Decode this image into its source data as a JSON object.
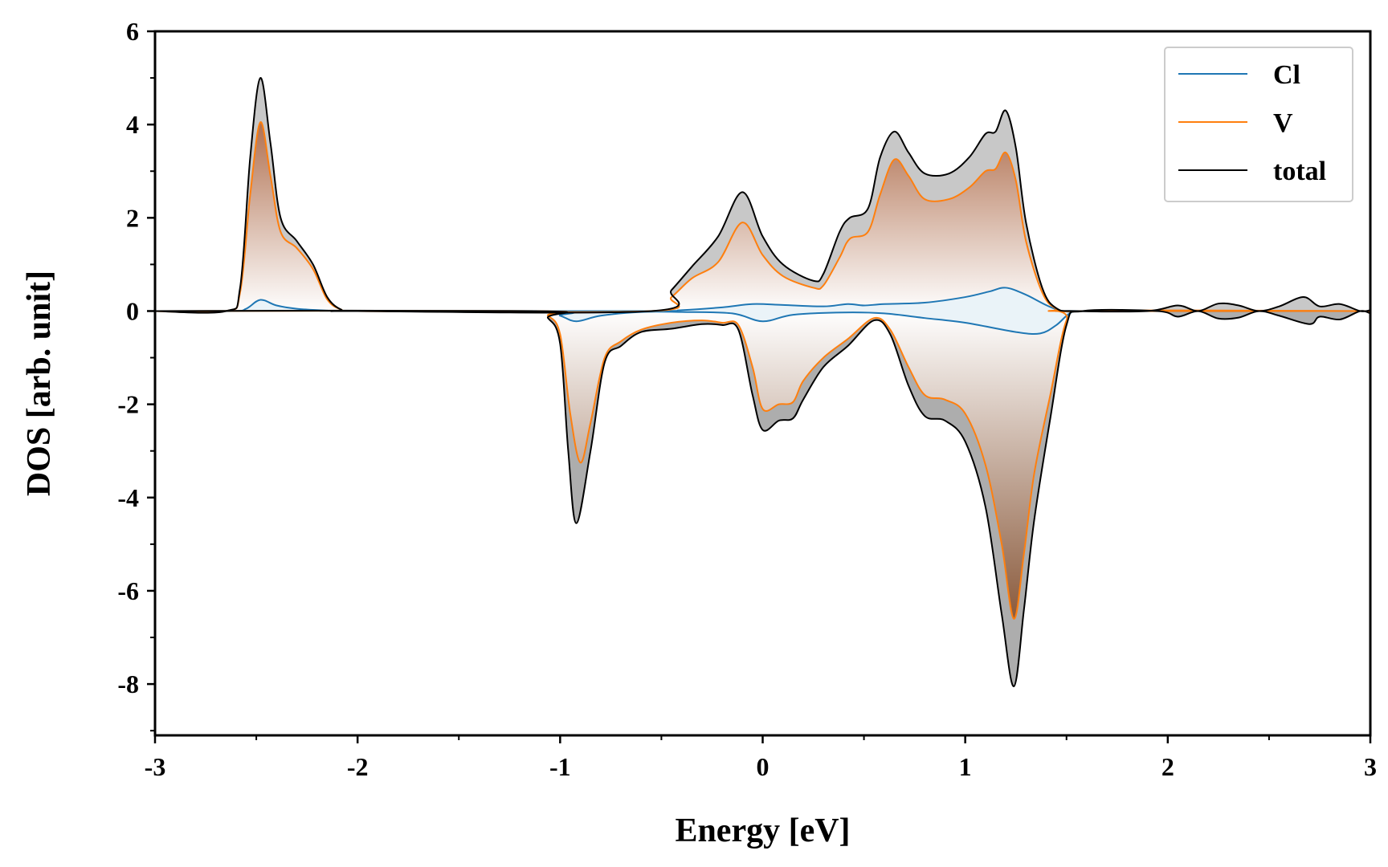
{
  "chart_data": {
    "type": "area",
    "title": "",
    "xlabel": "Energy [eV]",
    "ylabel": "DOS [arb. unit]",
    "xlim": [
      -3,
      3
    ],
    "ylim": [
      -9.1,
      6
    ],
    "xticks": [
      {
        "value": -3,
        "label": "-3"
      },
      {
        "value": -2,
        "label": "-2"
      },
      {
        "value": -1,
        "label": "-1"
      },
      {
        "value": 0,
        "label": "0"
      },
      {
        "value": 1,
        "label": "1"
      },
      {
        "value": 2,
        "label": "2"
      },
      {
        "value": 3,
        "label": "3"
      }
    ],
    "yticks": [
      {
        "value": 6,
        "label": "6"
      },
      {
        "value": 4,
        "label": "4"
      },
      {
        "value": 2,
        "label": "2"
      },
      {
        "value": 0,
        "label": "0"
      },
      {
        "value": -2,
        "label": "-2"
      },
      {
        "value": -4,
        "label": "-4"
      },
      {
        "value": -6,
        "label": "-6"
      },
      {
        "value": -8,
        "label": "-8"
      }
    ],
    "grid": false,
    "legend_position": "top-right",
    "series": [
      {
        "name": "Cl",
        "color": "#1f77b4",
        "up": [
          [
            -3,
            0
          ],
          [
            -2.62,
            0
          ],
          [
            -2.55,
            0.05
          ],
          [
            -2.48,
            0.24
          ],
          [
            -2.4,
            0.12
          ],
          [
            -2.3,
            0.05
          ],
          [
            -2.15,
            0.01
          ],
          [
            -2.05,
            0
          ],
          [
            -0.6,
            0
          ],
          [
            -0.4,
            0.02
          ],
          [
            -0.2,
            0.08
          ],
          [
            -0.05,
            0.15
          ],
          [
            0.1,
            0.13
          ],
          [
            0.3,
            0.1
          ],
          [
            0.42,
            0.15
          ],
          [
            0.5,
            0.12
          ],
          [
            0.6,
            0.15
          ],
          [
            0.8,
            0.18
          ],
          [
            1.0,
            0.3
          ],
          [
            1.12,
            0.42
          ],
          [
            1.2,
            0.5
          ],
          [
            1.3,
            0.35
          ],
          [
            1.45,
            0.04
          ],
          [
            1.6,
            0
          ],
          [
            3,
            0
          ]
        ],
        "down": [
          [
            -3,
            0
          ],
          [
            -1.1,
            0
          ],
          [
            -1.0,
            -0.1
          ],
          [
            -0.92,
            -0.22
          ],
          [
            -0.8,
            -0.1
          ],
          [
            -0.6,
            -0.02
          ],
          [
            -0.4,
            -0.02
          ],
          [
            -0.15,
            -0.05
          ],
          [
            0,
            -0.22
          ],
          [
            0.15,
            -0.08
          ],
          [
            0.4,
            -0.03
          ],
          [
            0.6,
            -0.05
          ],
          [
            0.8,
            -0.15
          ],
          [
            1.0,
            -0.25
          ],
          [
            1.25,
            -0.45
          ],
          [
            1.37,
            -0.48
          ],
          [
            1.45,
            -0.3
          ],
          [
            1.52,
            -0.04
          ],
          [
            1.6,
            0
          ],
          [
            3,
            0
          ]
        ]
      },
      {
        "name": "V",
        "color": "#ff7f0e",
        "up": [
          [
            -3,
            0
          ],
          [
            -2.65,
            0
          ],
          [
            -2.58,
            0.4
          ],
          [
            -2.53,
            2.5
          ],
          [
            -2.48,
            4.05
          ],
          [
            -2.43,
            2.9
          ],
          [
            -2.38,
            1.7
          ],
          [
            -2.3,
            1.35
          ],
          [
            -2.22,
            0.9
          ],
          [
            -2.15,
            0.25
          ],
          [
            -2.08,
            0.03
          ],
          [
            -2,
            0
          ],
          [
            -0.55,
            0
          ],
          [
            -0.45,
            0.3
          ],
          [
            -0.35,
            0.7
          ],
          [
            -0.22,
            1.05
          ],
          [
            -0.1,
            1.9
          ],
          [
            0,
            1.2
          ],
          [
            0.1,
            0.75
          ],
          [
            0.25,
            0.5
          ],
          [
            0.3,
            0.55
          ],
          [
            0.38,
            1.15
          ],
          [
            0.43,
            1.55
          ],
          [
            0.52,
            1.7
          ],
          [
            0.58,
            2.5
          ],
          [
            0.65,
            3.25
          ],
          [
            0.72,
            2.9
          ],
          [
            0.8,
            2.4
          ],
          [
            0.92,
            2.4
          ],
          [
            1.02,
            2.65
          ],
          [
            1.1,
            3.0
          ],
          [
            1.15,
            3.05
          ],
          [
            1.2,
            3.4
          ],
          [
            1.25,
            2.8
          ],
          [
            1.3,
            1.5
          ],
          [
            1.38,
            0.4
          ],
          [
            1.45,
            0.05
          ],
          [
            1.55,
            0
          ],
          [
            3,
            0
          ]
        ],
        "down": [
          [
            -3,
            0
          ],
          [
            -1.12,
            0
          ],
          [
            -1.06,
            -0.1
          ],
          [
            -1.0,
            -0.5
          ],
          [
            -0.95,
            -2.2
          ],
          [
            -0.9,
            -3.25
          ],
          [
            -0.85,
            -2.4
          ],
          [
            -0.78,
            -1
          ],
          [
            -0.7,
            -0.65
          ],
          [
            -0.6,
            -0.4
          ],
          [
            -0.45,
            -0.25
          ],
          [
            -0.3,
            -0.2
          ],
          [
            -0.2,
            -0.25
          ],
          [
            -0.12,
            -0.3
          ],
          [
            -0.05,
            -1.2
          ],
          [
            0,
            -2.1
          ],
          [
            0.08,
            -2.0
          ],
          [
            0.15,
            -1.95
          ],
          [
            0.2,
            -1.5
          ],
          [
            0.3,
            -1.0
          ],
          [
            0.42,
            -0.6
          ],
          [
            0.55,
            -0.15
          ],
          [
            0.63,
            -0.4
          ],
          [
            0.72,
            -1.2
          ],
          [
            0.8,
            -1.8
          ],
          [
            0.9,
            -1.9
          ],
          [
            1.0,
            -2.2
          ],
          [
            1.1,
            -3.3
          ],
          [
            1.18,
            -5.0
          ],
          [
            1.24,
            -6.6
          ],
          [
            1.29,
            -5.2
          ],
          [
            1.34,
            -3.5
          ],
          [
            1.42,
            -1.8
          ],
          [
            1.5,
            -0.2
          ],
          [
            1.58,
            0
          ],
          [
            3,
            0
          ]
        ]
      },
      {
        "name": "total",
        "color": "#000000",
        "up": [
          [
            -3,
            0
          ],
          [
            -2.65,
            0
          ],
          [
            -2.58,
            0.5
          ],
          [
            -2.53,
            3.3
          ],
          [
            -2.48,
            5.0
          ],
          [
            -2.43,
            3.6
          ],
          [
            -2.38,
            2.0
          ],
          [
            -2.3,
            1.5
          ],
          [
            -2.22,
            1.0
          ],
          [
            -2.15,
            0.3
          ],
          [
            -2.08,
            0.03
          ],
          [
            -2,
            0
          ],
          [
            -0.55,
            0
          ],
          [
            -0.45,
            0.45
          ],
          [
            -0.35,
            0.95
          ],
          [
            -0.22,
            1.6
          ],
          [
            -0.1,
            2.55
          ],
          [
            0,
            1.6
          ],
          [
            0.1,
            1.0
          ],
          [
            0.25,
            0.65
          ],
          [
            0.3,
            0.8
          ],
          [
            0.38,
            1.7
          ],
          [
            0.43,
            2.0
          ],
          [
            0.52,
            2.2
          ],
          [
            0.58,
            3.3
          ],
          [
            0.65,
            3.85
          ],
          [
            0.72,
            3.4
          ],
          [
            0.8,
            2.95
          ],
          [
            0.92,
            2.95
          ],
          [
            1.02,
            3.3
          ],
          [
            1.1,
            3.8
          ],
          [
            1.15,
            3.85
          ],
          [
            1.2,
            4.3
          ],
          [
            1.25,
            3.5
          ],
          [
            1.3,
            1.9
          ],
          [
            1.38,
            0.5
          ],
          [
            1.45,
            0.06
          ],
          [
            1.55,
            0
          ],
          [
            1.9,
            0
          ],
          [
            2.05,
            0.12
          ],
          [
            2.15,
            0
          ],
          [
            2.25,
            0.16
          ],
          [
            2.35,
            0.12
          ],
          [
            2.45,
            0
          ],
          [
            2.55,
            0.1
          ],
          [
            2.67,
            0.3
          ],
          [
            2.75,
            0.1
          ],
          [
            2.85,
            0.15
          ],
          [
            2.95,
            0
          ],
          [
            3,
            0.02
          ]
        ],
        "down": [
          [
            -3,
            0
          ],
          [
            -1.12,
            0
          ],
          [
            -1.06,
            -0.15
          ],
          [
            -1.0,
            -0.7
          ],
          [
            -0.96,
            -3.0
          ],
          [
            -0.92,
            -4.55
          ],
          [
            -0.85,
            -3.0
          ],
          [
            -0.78,
            -1.1
          ],
          [
            -0.7,
            -0.75
          ],
          [
            -0.6,
            -0.45
          ],
          [
            -0.45,
            -0.38
          ],
          [
            -0.3,
            -0.28
          ],
          [
            -0.2,
            -0.3
          ],
          [
            -0.12,
            -0.4
          ],
          [
            -0.05,
            -1.8
          ],
          [
            0,
            -2.55
          ],
          [
            0.08,
            -2.35
          ],
          [
            0.15,
            -2.3
          ],
          [
            0.2,
            -1.9
          ],
          [
            0.3,
            -1.2
          ],
          [
            0.42,
            -0.75
          ],
          [
            0.55,
            -0.2
          ],
          [
            0.63,
            -0.5
          ],
          [
            0.72,
            -1.6
          ],
          [
            0.8,
            -2.25
          ],
          [
            0.9,
            -2.35
          ],
          [
            1.0,
            -2.8
          ],
          [
            1.1,
            -4.2
          ],
          [
            1.18,
            -6.5
          ],
          [
            1.24,
            -8.05
          ],
          [
            1.29,
            -6.4
          ],
          [
            1.34,
            -4.5
          ],
          [
            1.42,
            -2.3
          ],
          [
            1.5,
            -0.3
          ],
          [
            1.58,
            0
          ],
          [
            1.95,
            0
          ],
          [
            2.05,
            -0.12
          ],
          [
            2.15,
            0
          ],
          [
            2.25,
            -0.16
          ],
          [
            2.35,
            -0.14
          ],
          [
            2.45,
            0
          ],
          [
            2.55,
            -0.1
          ],
          [
            2.7,
            -0.28
          ],
          [
            2.75,
            -0.12
          ],
          [
            2.85,
            -0.18
          ],
          [
            2.95,
            0
          ],
          [
            3,
            -0.05
          ]
        ]
      }
    ]
  }
}
